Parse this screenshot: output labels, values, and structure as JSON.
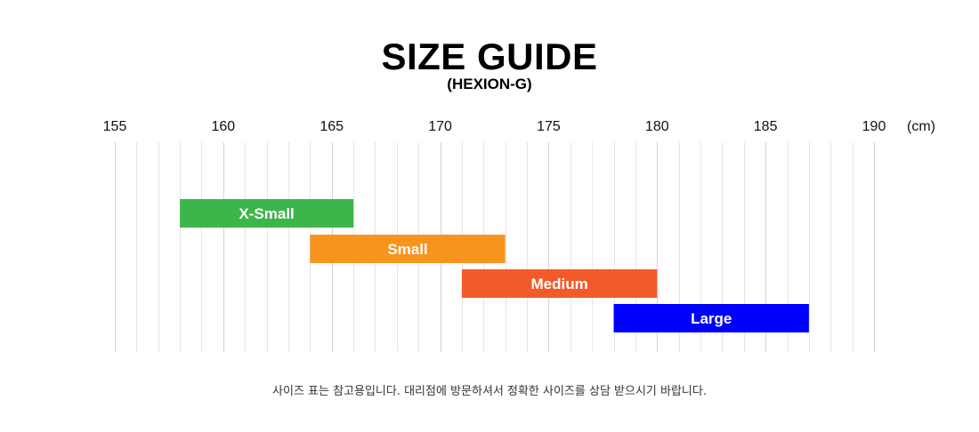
{
  "title": "SIZE GUIDE",
  "subtitle": "(HEXION-G)",
  "unit_label": "(cm)",
  "footnote": "사이즈 표는 참고용입니다. 대리점에 방문하셔서 정확한 사이즈를 상담 받으시기 바랍니다.",
  "chart_data": {
    "type": "bar",
    "orientation": "horizontal-range",
    "title": "SIZE GUIDE",
    "subtitle": "(HEXION-G)",
    "xlabel": "(cm)",
    "xlim": [
      155,
      190
    ],
    "xticks": [
      155,
      160,
      165,
      170,
      175,
      180,
      185,
      190
    ],
    "minor_grid_step": 1,
    "grid": true,
    "series": [
      {
        "name": "X-Small",
        "start": 158,
        "end": 166,
        "color": "#3cb54a"
      },
      {
        "name": "Small",
        "start": 164,
        "end": 173,
        "color": "#f7941e"
      },
      {
        "name": "Medium",
        "start": 171,
        "end": 180,
        "color": "#f15a29"
      },
      {
        "name": "Large",
        "start": 178,
        "end": 187,
        "color": "#0000ff"
      }
    ]
  }
}
